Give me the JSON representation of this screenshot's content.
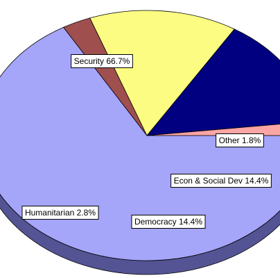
{
  "chart_data": {
    "type": "pie",
    "title": "",
    "three_d": true,
    "start_angle_deg": 0,
    "slices": [
      {
        "name": "Security",
        "value": 66.7,
        "label": "Security 66.7%",
        "color": "#a5a5fa",
        "dark": "#545494"
      },
      {
        "name": "Humanitarian",
        "value": 2.8,
        "label": "Humanitarian 2.8%",
        "color": "#a04f4f",
        "dark": "#5e2828"
      },
      {
        "name": "Democracy",
        "value": 14.4,
        "label": "Democracy 14.4%",
        "color": "#fcfc82",
        "dark": "#8c8c3c"
      },
      {
        "name": "Econ & Social Dev",
        "value": 14.4,
        "label": "Econ & Social Dev 14.4%",
        "color": "#000080",
        "dark": "#000040"
      },
      {
        "name": "Other",
        "value": 1.8,
        "label": "Other 1.8%",
        "color": "#fca5a5",
        "dark": "#a06060"
      }
    ]
  }
}
